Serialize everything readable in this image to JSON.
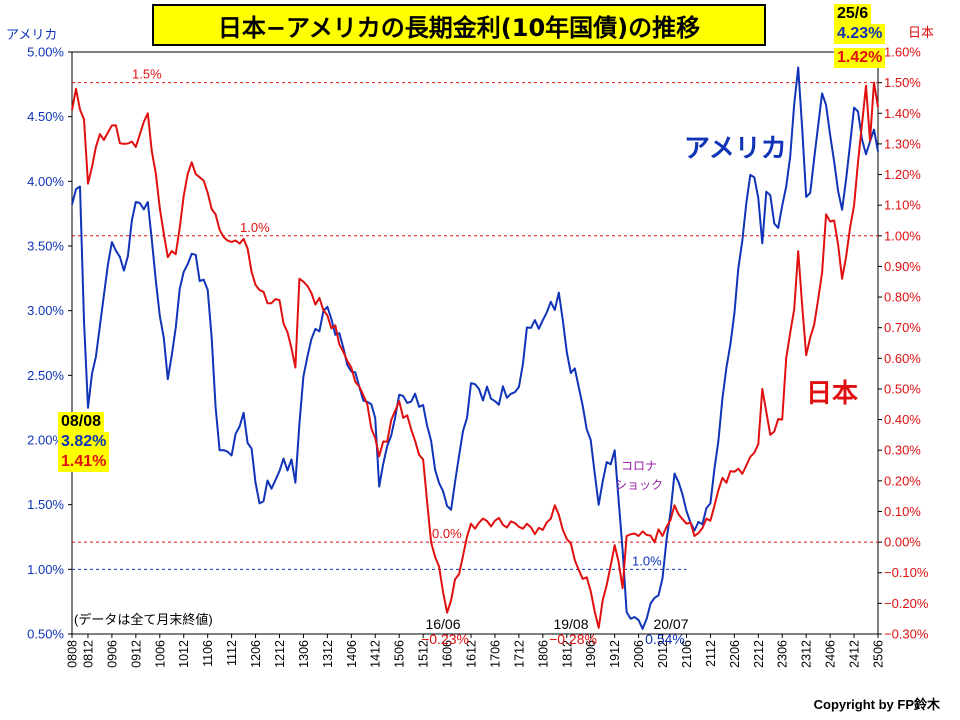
{
  "chart_data": {
    "type": "line",
    "title": "日本−アメリカの長期金利(10年国債)の推移",
    "y_left_label": "アメリカ",
    "y_right_label": "日本",
    "y_left_range": [
      0.5,
      5.0
    ],
    "y_right_range": [
      -0.3,
      1.6
    ],
    "y_left_ticks": [
      "5.00%",
      "4.50%",
      "4.00%",
      "3.50%",
      "3.00%",
      "2.50%",
      "2.00%",
      "1.50%",
      "1.00%",
      "0.50%"
    ],
    "y_right_ticks": [
      "1.60%",
      "1.50%",
      "1.40%",
      "1.30%",
      "1.20%",
      "1.10%",
      "1.00%",
      "0.90%",
      "0.80%",
      "0.70%",
      "0.60%",
      "0.50%",
      "0.40%",
      "0.30%",
      "0.20%",
      "0.10%",
      "0.00%",
      "−0.10%",
      "−0.20%",
      "−0.30%"
    ],
    "x_ticks": [
      "0808",
      "0812",
      "0906",
      "0912",
      "1006",
      "1012",
      "1106",
      "1112",
      "1206",
      "1212",
      "1306",
      "1312",
      "1406",
      "1412",
      "1506",
      "1512",
      "1606",
      "1612",
      "1706",
      "1712",
      "1806",
      "1812",
      "1906",
      "1912",
      "2006",
      "2012",
      "2106",
      "2112",
      "2206",
      "2212",
      "2306",
      "2312",
      "2406",
      "2412",
      "2506"
    ],
    "series": [
      {
        "name": "アメリカ",
        "color": "#1034b8",
        "axis": "left",
        "key_points": [
          {
            "x": "0808",
            "y": 3.82
          },
          {
            "x": "0810",
            "y": 3.96
          },
          {
            "x": "0811",
            "y": 2.92
          },
          {
            "x": "0812",
            "y": 2.25
          },
          {
            "x": "0904",
            "y": 3.12
          },
          {
            "x": "0906",
            "y": 3.53
          },
          {
            "x": "0909",
            "y": 3.31
          },
          {
            "x": "0912",
            "y": 3.84
          },
          {
            "x": "1003",
            "y": 3.84
          },
          {
            "x": "1006",
            "y": 2.96
          },
          {
            "x": "1008",
            "y": 2.47
          },
          {
            "x": "1012",
            "y": 3.3
          },
          {
            "x": "1102",
            "y": 3.44
          },
          {
            "x": "1106",
            "y": 3.16
          },
          {
            "x": "1109",
            "y": 1.92
          },
          {
            "x": "1112",
            "y": 1.88
          },
          {
            "x": "1203",
            "y": 2.21
          },
          {
            "x": "1207",
            "y": 1.51
          },
          {
            "x": "1212",
            "y": 1.76
          },
          {
            "x": "1303",
            "y": 1.85
          },
          {
            "x": "1304",
            "y": 1.67
          },
          {
            "x": "1306",
            "y": 2.49
          },
          {
            "x": "1308",
            "y": 2.78
          },
          {
            "x": "1312",
            "y": 3.03
          },
          {
            "x": "1406",
            "y": 2.53
          },
          {
            "x": "1412",
            "y": 2.17
          },
          {
            "x": "1501",
            "y": 1.64
          },
          {
            "x": "1506",
            "y": 2.35
          },
          {
            "x": "1512",
            "y": 2.27
          },
          {
            "x": "1603",
            "y": 1.77
          },
          {
            "x": "1606",
            "y": 1.49
          },
          {
            "x": "1607",
            "y": 1.46
          },
          {
            "x": "1612",
            "y": 2.44
          },
          {
            "x": "1706",
            "y": 2.3
          },
          {
            "x": "1712",
            "y": 2.41
          },
          {
            "x": "1802",
            "y": 2.87
          },
          {
            "x": "1805",
            "y": 2.86
          },
          {
            "x": "1810",
            "y": 3.14
          },
          {
            "x": "1812",
            "y": 2.68
          },
          {
            "x": "1903",
            "y": 2.41
          },
          {
            "x": "1906",
            "y": 2.0
          },
          {
            "x": "1908",
            "y": 1.5
          },
          {
            "x": "1909",
            "y": 1.68
          },
          {
            "x": "1912",
            "y": 1.92
          },
          {
            "x": "2002",
            "y": 1.15
          },
          {
            "x": "2003",
            "y": 0.67
          },
          {
            "x": "2007",
            "y": 0.54
          },
          {
            "x": "2012",
            "y": 0.93
          },
          {
            "x": "2102",
            "y": 1.44
          },
          {
            "x": "2103",
            "y": 1.74
          },
          {
            "x": "2106",
            "y": 1.45
          },
          {
            "x": "2108",
            "y": 1.3
          },
          {
            "x": "2112",
            "y": 1.51
          },
          {
            "x": "2203",
            "y": 2.32
          },
          {
            "x": "2206",
            "y": 2.98
          },
          {
            "x": "2209",
            "y": 3.83
          },
          {
            "x": "2210",
            "y": 4.05
          },
          {
            "x": "2212",
            "y": 3.87
          },
          {
            "x": "2301",
            "y": 3.52
          },
          {
            "x": "2302",
            "y": 3.92
          },
          {
            "x": "2305",
            "y": 3.64
          },
          {
            "x": "2307",
            "y": 3.96
          },
          {
            "x": "2310",
            "y": 4.88
          },
          {
            "x": "2312",
            "y": 3.88
          },
          {
            "x": "2401",
            "y": 3.91
          },
          {
            "x": "2404",
            "y": 4.68
          },
          {
            "x": "2406",
            "y": 4.36
          },
          {
            "x": "2409",
            "y": 3.78
          },
          {
            "x": "2412",
            "y": 4.57
          },
          {
            "x": "2501",
            "y": 4.54
          },
          {
            "x": "2503",
            "y": 4.21
          },
          {
            "x": "2505",
            "y": 4.4
          },
          {
            "x": "2506",
            "y": 4.23
          }
        ]
      },
      {
        "name": "日本",
        "color": "#e01010",
        "axis": "right",
        "key_points": [
          {
            "x": "0808",
            "y": 1.41
          },
          {
            "x": "0809",
            "y": 1.48
          },
          {
            "x": "0811",
            "y": 1.38
          },
          {
            "x": "0812",
            "y": 1.17
          },
          {
            "x": "0902",
            "y": 1.29
          },
          {
            "x": "0906",
            "y": 1.36
          },
          {
            "x": "0909",
            "y": 1.3
          },
          {
            "x": "0912",
            "y": 1.29
          },
          {
            "x": "1003",
            "y": 1.4
          },
          {
            "x": "1006",
            "y": 1.09
          },
          {
            "x": "1008",
            "y": 0.93
          },
          {
            "x": "1010",
            "y": 0.94
          },
          {
            "x": "1012",
            "y": 1.13
          },
          {
            "x": "1102",
            "y": 1.24
          },
          {
            "x": "1106",
            "y": 1.14
          },
          {
            "x": "1109",
            "y": 1.02
          },
          {
            "x": "1112",
            "y": 0.98
          },
          {
            "x": "1203",
            "y": 0.99
          },
          {
            "x": "1206",
            "y": 0.84
          },
          {
            "x": "1209",
            "y": 0.78
          },
          {
            "x": "1212",
            "y": 0.79
          },
          {
            "x": "1304",
            "y": 0.57
          },
          {
            "x": "1305",
            "y": 0.86
          },
          {
            "x": "1306",
            "y": 0.85
          },
          {
            "x": "1312",
            "y": 0.74
          },
          {
            "x": "1406",
            "y": 0.57
          },
          {
            "x": "1410",
            "y": 0.45
          },
          {
            "x": "1501",
            "y": 0.28
          },
          {
            "x": "1506",
            "y": 0.46
          },
          {
            "x": "1512",
            "y": 0.27
          },
          {
            "x": "1602",
            "y": 0.0
          },
          {
            "x": "1604",
            "y": -0.08
          },
          {
            "x": "1606",
            "y": -0.23
          },
          {
            "x": "1607",
            "y": -0.19
          },
          {
            "x": "1612",
            "y": 0.06
          },
          {
            "x": "1706",
            "y": 0.07
          },
          {
            "x": "1712",
            "y": 0.05
          },
          {
            "x": "1806",
            "y": 0.04
          },
          {
            "x": "1809",
            "y": 0.12
          },
          {
            "x": "1812",
            "y": 0.01
          },
          {
            "x": "1903",
            "y": -0.09
          },
          {
            "x": "1906",
            "y": -0.16
          },
          {
            "x": "1908",
            "y": -0.28
          },
          {
            "x": "1910",
            "y": -0.14
          },
          {
            "x": "1912",
            "y": -0.01
          },
          {
            "x": "2002",
            "y": -0.15
          },
          {
            "x": "2003",
            "y": 0.02
          },
          {
            "x": "2006",
            "y": 0.02
          },
          {
            "x": "2012",
            "y": 0.02
          },
          {
            "x": "2103",
            "y": 0.12
          },
          {
            "x": "2106",
            "y": 0.06
          },
          {
            "x": "2108",
            "y": 0.02
          },
          {
            "x": "2112",
            "y": 0.07
          },
          {
            "x": "2203",
            "y": 0.21
          },
          {
            "x": "2206",
            "y": 0.23
          },
          {
            "x": "2209",
            "y": 0.25
          },
          {
            "x": "2212",
            "y": 0.32
          },
          {
            "x": "2301",
            "y": 0.5
          },
          {
            "x": "2303",
            "y": 0.35
          },
          {
            "x": "2306",
            "y": 0.4
          },
          {
            "x": "2307",
            "y": 0.6
          },
          {
            "x": "2309",
            "y": 0.76
          },
          {
            "x": "2310",
            "y": 0.95
          },
          {
            "x": "2312",
            "y": 0.61
          },
          {
            "x": "2402",
            "y": 0.71
          },
          {
            "x": "2404",
            "y": 0.88
          },
          {
            "x": "2405",
            "y": 1.07
          },
          {
            "x": "2407",
            "y": 1.05
          },
          {
            "x": "2409",
            "y": 0.86
          },
          {
            "x": "2412",
            "y": 1.1
          },
          {
            "x": "2501",
            "y": 1.24
          },
          {
            "x": "2503",
            "y": 1.49
          },
          {
            "x": "2504",
            "y": 1.31
          },
          {
            "x": "2505",
            "y": 1.5
          },
          {
            "x": "2506",
            "y": 1.42
          }
        ]
      }
    ],
    "reference_lines": [
      {
        "label": "1.5%",
        "axis": "right",
        "value": 1.5,
        "color": "#e01010"
      },
      {
        "label": "1.0%",
        "axis": "right",
        "value": 1.0,
        "color": "#e01010"
      },
      {
        "label": "0.0%",
        "axis": "right",
        "value": 0.0,
        "color": "#e01010"
      },
      {
        "label": "1.0%",
        "axis": "left",
        "value": 1.0,
        "color": "#1034b8"
      }
    ],
    "annotations": [
      {
        "text": "16/06",
        "x": "1606"
      },
      {
        "text": "−0.23%",
        "x": "1606",
        "color": "#e01010"
      },
      {
        "text": "19/08",
        "x": "1908"
      },
      {
        "text": "−0.28%",
        "x": "1908",
        "color": "#e01010"
      },
      {
        "text": "20/07",
        "x": "2007"
      },
      {
        "text": "0.54%",
        "x": "2007",
        "color": "#1034b8"
      },
      {
        "text": "コロナ",
        "x": "1912",
        "color": "#9b1ea8"
      },
      {
        "text": "ショック",
        "x": "1912",
        "color": "#9b1ea8"
      },
      {
        "text": "(データは全て月末終値)"
      }
    ]
  },
  "callouts": {
    "start_date": "08/08",
    "start_us": "3.82%",
    "start_jp": "1.41%",
    "end_date": "25/6",
    "end_us": "4.23%",
    "end_jp": "1.42%"
  },
  "labels": {
    "us_big": "アメリカ",
    "jp_big": "日本",
    "copyright": "Copyright by FP鈴木"
  },
  "colors": {
    "us": "#1034b8",
    "jp": "#e01010",
    "highlight": "#ffff00",
    "corona": "#9b1ea8"
  }
}
